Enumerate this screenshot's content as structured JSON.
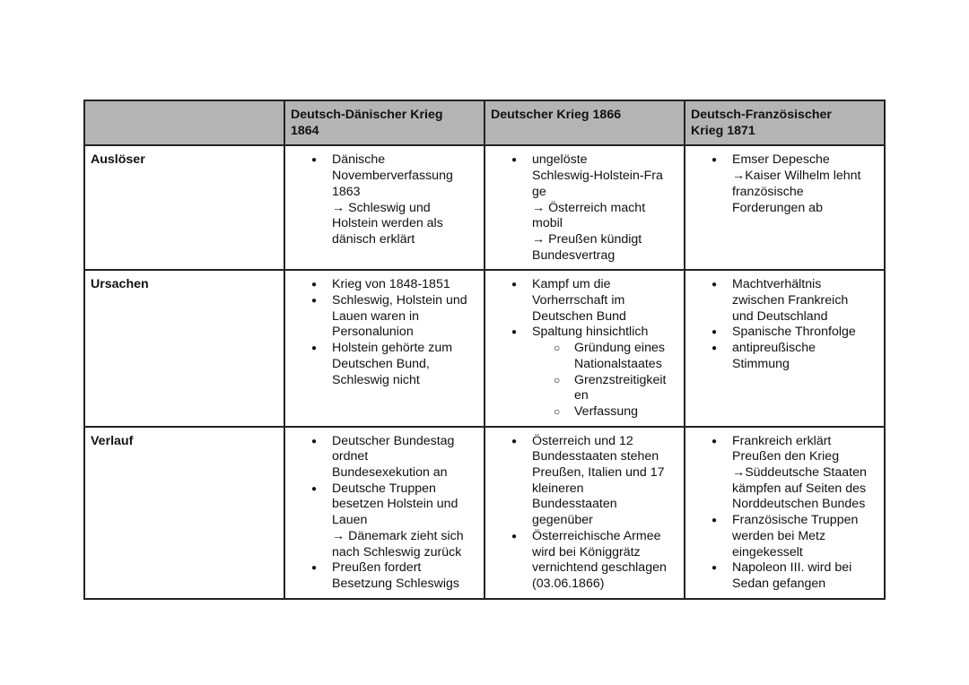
{
  "table": {
    "headers": [
      "",
      "Deutsch-Dänischer Krieg\n1864",
      "Deutscher Krieg 1866",
      "Deutsch-Französischer\nKrieg 1871"
    ],
    "rows": [
      {
        "label": "Auslöser",
        "cells": [
          [
            {
              "text": "Dänische\nNovemberverfassung\n1863\n→ Schleswig und\nHolstein werden als\ndänisch erklärt",
              "level": 1
            }
          ],
          [
            {
              "text": "ungelöste\nSchleswig-Holstein-Fra\nge\n→  Österreich macht\nmobil\n→ Preußen kündigt\nBundesvertrag",
              "level": 1
            }
          ],
          [
            {
              "text": "Emser Depesche\n→Kaiser Wilhelm lehnt\nfranzösische\nForderungen ab",
              "level": 1
            }
          ]
        ]
      },
      {
        "label": "Ursachen",
        "cells": [
          [
            {
              "text": "Krieg von 1848-1851",
              "level": 1
            },
            {
              "text": "Schleswig, Holstein und\nLauen waren in\nPersonalunion",
              "level": 1
            },
            {
              "text": "Holstein gehörte zum\nDeutschen Bund,\nSchleswig nicht",
              "level": 1
            }
          ],
          [
            {
              "text": "Kampf um die\nVorherrschaft im\nDeutschen Bund",
              "level": 1
            },
            {
              "text": "Spaltung hinsichtlich",
              "level": 1
            },
            {
              "text": "Gründung eines\nNationalstaates",
              "level": 2
            },
            {
              "text": "Grenzstreitigkeit\nen",
              "level": 2
            },
            {
              "text": "Verfassung",
              "level": 2
            }
          ],
          [
            {
              "text": "Machtverhältnis\nzwischen Frankreich\nund Deutschland",
              "level": 1
            },
            {
              "text": "Spanische Thronfolge",
              "level": 1
            },
            {
              "text": "antipreußische\nStimmung",
              "level": 1
            }
          ]
        ]
      },
      {
        "label": "Verlauf",
        "cells": [
          [
            {
              "text": "Deutscher Bundestag\nordnet\nBundesexekution an",
              "level": 1
            },
            {
              "text": "Deutsche Truppen\nbesetzen Holstein und\nLauen\n→ Dänemark zieht sich\nnach Schleswig zurück",
              "level": 1
            },
            {
              "text": "Preußen fordert\nBesetzung Schleswigs",
              "level": 1
            }
          ],
          [
            {
              "text": "Österreich und 12\nBundesstaaten stehen\nPreußen, Italien und 17\nkleineren\nBundesstaaten\ngegenüber",
              "level": 1
            },
            {
              "text": "Österreichische Armee\nwird bei Königgrätz\nvernichtend geschlagen\n(03.06.1866)",
              "level": 1
            }
          ],
          [
            {
              "text": "Frankreich erklärt\nPreußen den Krieg\n→Süddeutsche Staaten\nkämpfen auf Seiten des\nNorddeutschen Bundes",
              "level": 1
            },
            {
              "text": "Französische Truppen\nwerden bei Metz\neingekesselt",
              "level": 1
            },
            {
              "text": "Napoleon III. wird bei\nSedan gefangen",
              "level": 1
            }
          ]
        ]
      }
    ]
  }
}
